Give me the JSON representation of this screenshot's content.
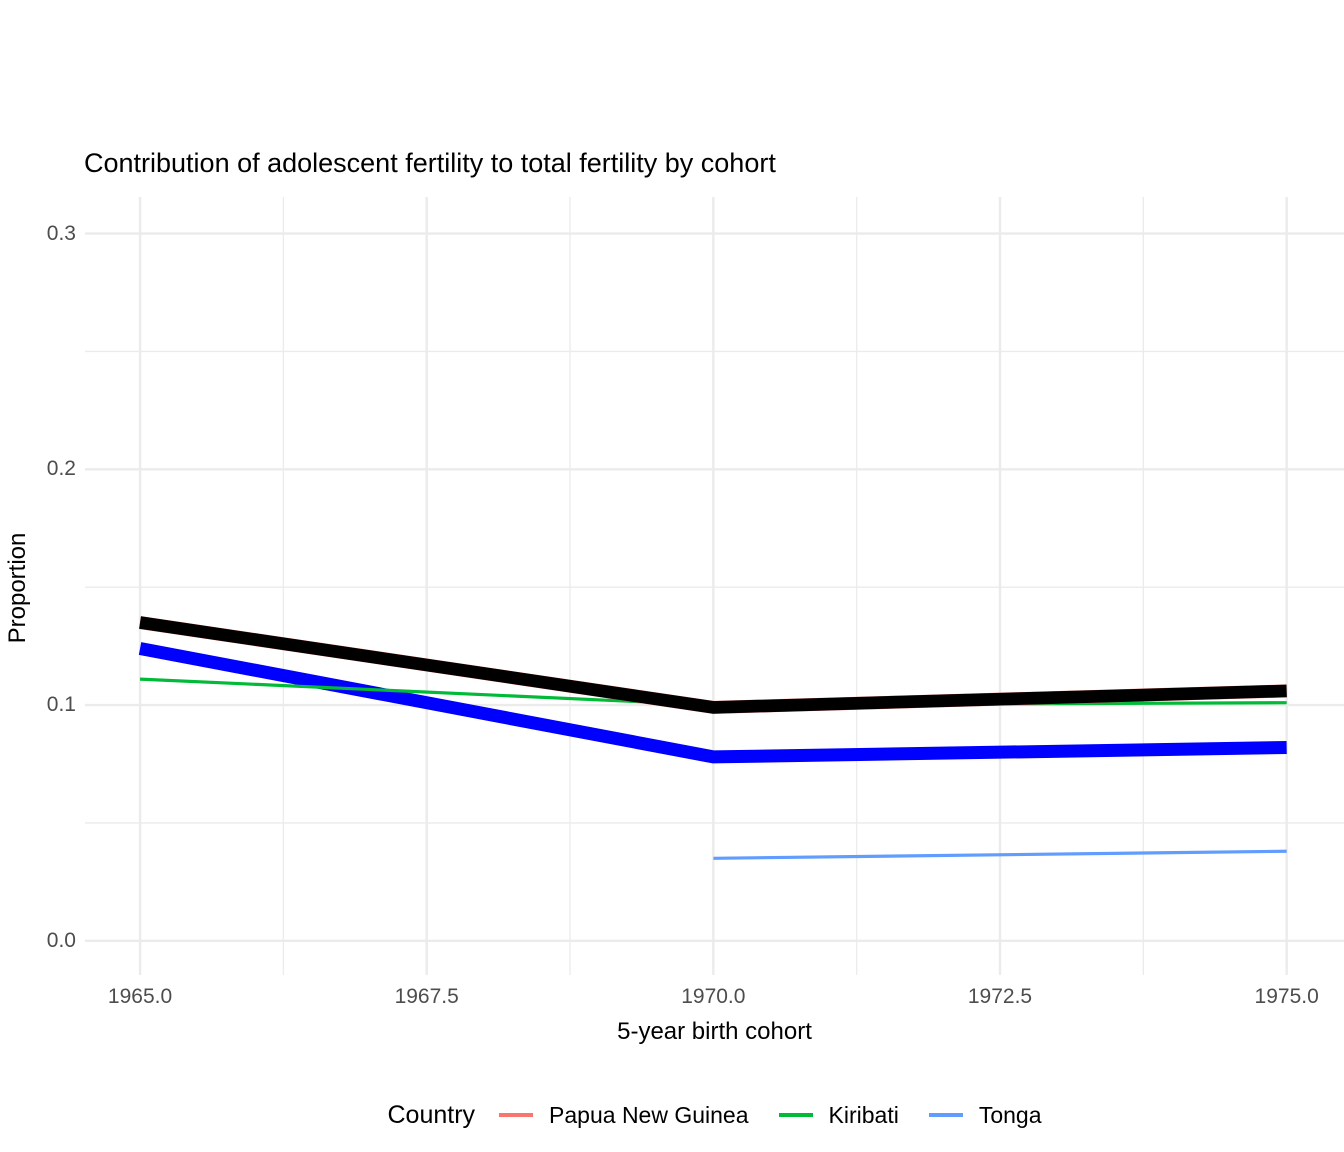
{
  "title": "Contribution of adolescent fertility to total fertility by cohort",
  "chart_data": {
    "type": "line",
    "title": "Contribution of adolescent fertility to total fertility by cohort",
    "xlabel": "5-year birth cohort",
    "ylabel": "Proportion",
    "xlim": [
      1964.52,
      1975.5
    ],
    "ylim": [
      -0.0145,
      0.3155
    ],
    "grid": true,
    "grid_color": "#ebebeb",
    "background": "#ffffff",
    "x_ticks": [
      1965.0,
      1967.5,
      1970.0,
      1972.5,
      1975.0
    ],
    "x_tick_labels": [
      "1965.0",
      "1967.5",
      "1970.0",
      "1972.5",
      "1975.0"
    ],
    "x_minor_ticks": [
      1966.25,
      1968.75,
      1971.25,
      1973.75
    ],
    "y_ticks": [
      0.0,
      0.1,
      0.2,
      0.3
    ],
    "y_tick_labels": [
      "0.0",
      "0.1",
      "0.2",
      "0.3"
    ],
    "y_minor_ticks": [
      0.05,
      0.15,
      0.25
    ],
    "series": [
      {
        "name": "blue-thick-highlight-line",
        "color": "#0000ff",
        "width": 13,
        "x": [
          1965,
          1970,
          1975
        ],
        "values": [
          0.124,
          0.078,
          0.082
        ]
      },
      {
        "name": "Kiribati",
        "color": "#00ba38",
        "width": 3.2,
        "x": [
          1965,
          1970,
          1975
        ],
        "values": [
          0.111,
          0.1,
          0.101
        ]
      },
      {
        "name": "Tonga",
        "color": "#619cff",
        "width": 3.2,
        "x": [
          1970,
          1975
        ],
        "values": [
          0.035,
          0.038
        ]
      },
      {
        "name": "Papua New Guinea",
        "color": "#f8766d",
        "width": 13,
        "x": [
          1965,
          1970,
          1975
        ],
        "values": [
          0.135,
          0.099,
          0.106
        ]
      },
      {
        "name": "black-thick-highlight-line",
        "color": "#000000",
        "width": 12.6,
        "x": [
          1965,
          1970,
          1975
        ],
        "values": [
          0.135,
          0.099,
          0.106
        ]
      }
    ],
    "legend": {
      "title": "Country",
      "position": "bottom",
      "entries": [
        {
          "label": "Papua New Guinea",
          "color": "#f8766d"
        },
        {
          "label": "Kiribati",
          "color": "#00ba38"
        },
        {
          "label": "Tonga",
          "color": "#619cff"
        }
      ]
    }
  }
}
